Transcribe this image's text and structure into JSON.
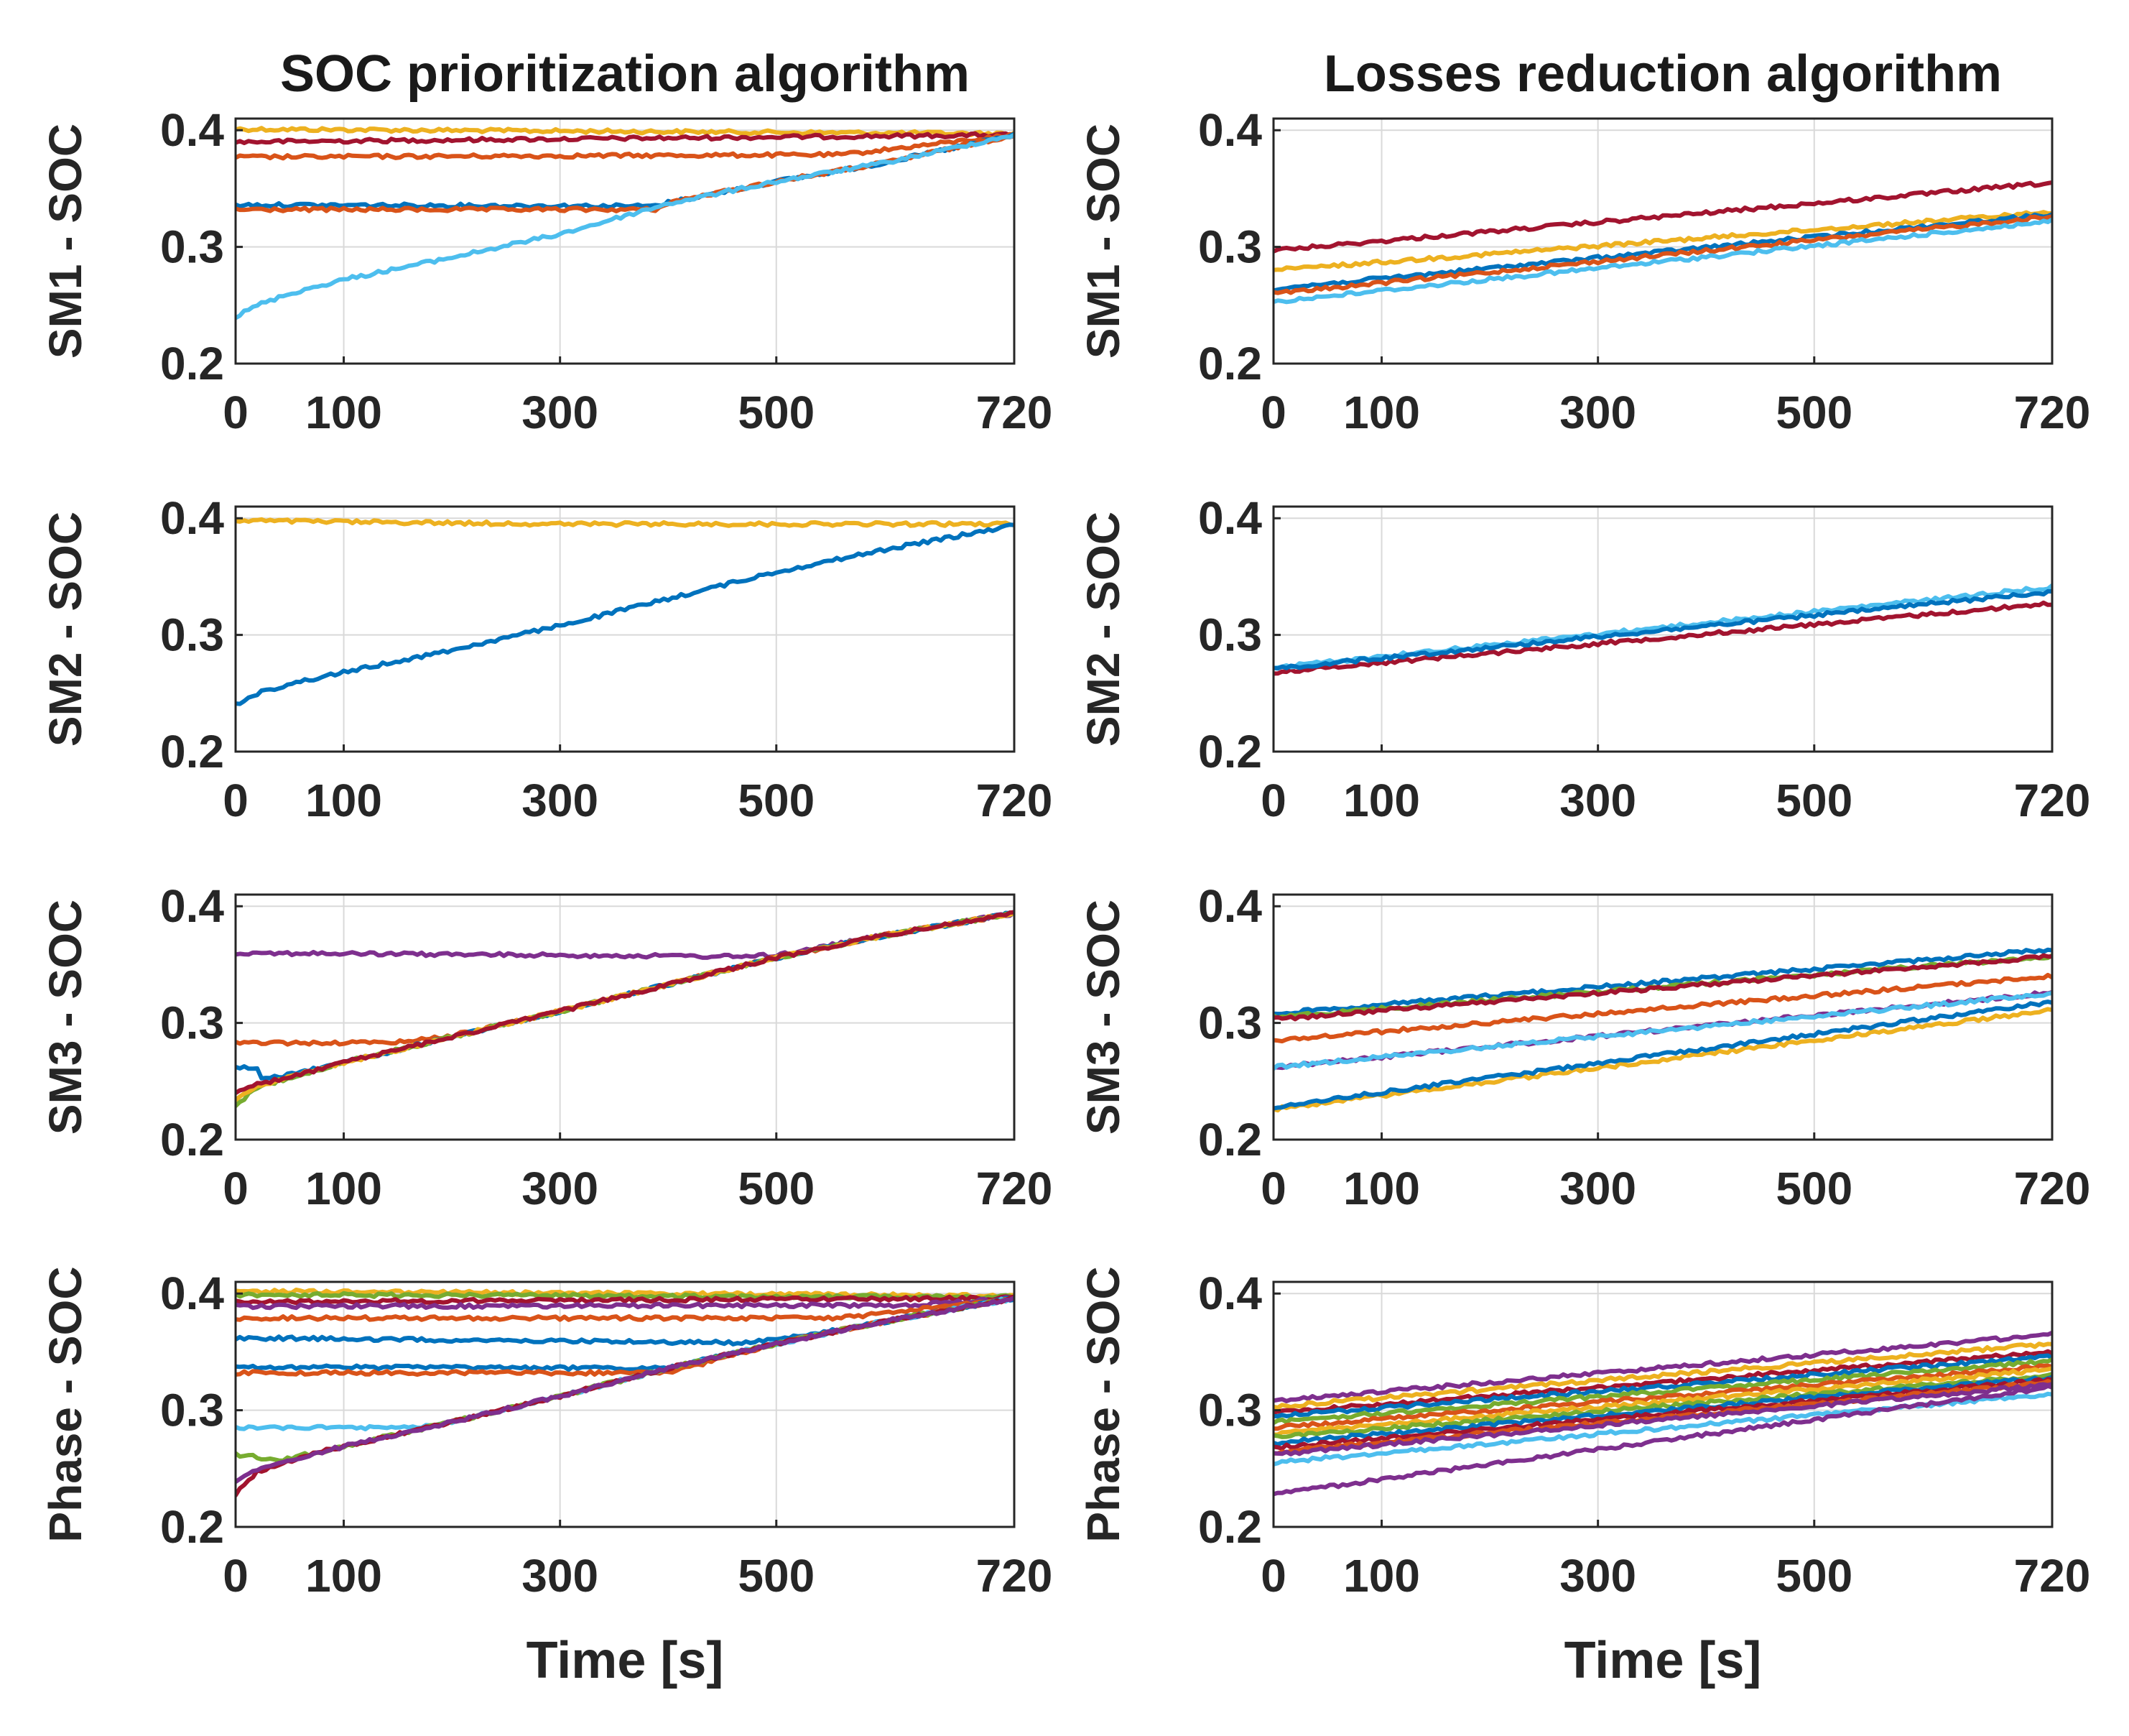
{
  "colors": {
    "blue": "#0072BD",
    "orange": "#D95319",
    "yellow": "#EDB120",
    "purple": "#7E2F8E",
    "green": "#77AC30",
    "cyan": "#4DBEEE",
    "red": "#A2142F",
    "axis": "#262626",
    "grid": "#d9d9d9"
  },
  "chart_data": [
    {
      "type": "line",
      "id": "left-1",
      "column_title": "SOC prioritization algorithm",
      "ylabel": "SM1 - SOC",
      "xlabel": "",
      "xlim": [
        0,
        720
      ],
      "ylim": [
        0.2,
        0.41
      ],
      "xticks": [
        "0",
        "100",
        "300",
        "500",
        "720"
      ],
      "xtick_values": [
        0,
        100,
        300,
        500,
        720
      ],
      "yticks": [
        "0.2",
        "0.3",
        "0.4"
      ],
      "ytick_values": [
        0.2,
        0.3,
        0.4
      ],
      "grid": true,
      "series": [
        {
          "color": "yellow",
          "x": [
            0,
            720
          ],
          "y": [
            0.401,
            0.397
          ]
        },
        {
          "color": "red",
          "x": [
            0,
            720
          ],
          "y": [
            0.39,
            0.396
          ]
        },
        {
          "color": "orange",
          "x": [
            0,
            560,
            720
          ],
          "y": [
            0.377,
            0.379,
            0.396
          ]
        },
        {
          "color": "blue",
          "x": [
            0,
            390,
            400,
            500,
            600,
            720
          ],
          "y": [
            0.336,
            0.335,
            0.338,
            0.356,
            0.372,
            0.396
          ]
        },
        {
          "color": "orange",
          "x": [
            0,
            390,
            400,
            500,
            600,
            720
          ],
          "y": [
            0.332,
            0.332,
            0.338,
            0.356,
            0.372,
            0.396
          ]
        },
        {
          "color": "cyan",
          "x": [
            0,
            20,
            50,
            100,
            200,
            300,
            400,
            500,
            600,
            720
          ],
          "y": [
            0.24,
            0.25,
            0.26,
            0.272,
            0.291,
            0.311,
            0.337,
            0.356,
            0.372,
            0.396
          ]
        }
      ]
    },
    {
      "type": "line",
      "id": "right-1",
      "column_title": "Losses reduction algorithm",
      "ylabel": "SM1 - SOC",
      "xlabel": "",
      "xlim": [
        0,
        720
      ],
      "ylim": [
        0.2,
        0.41
      ],
      "xticks": [
        "0",
        "100",
        "300",
        "500",
        "720"
      ],
      "xtick_values": [
        0,
        100,
        300,
        500,
        720
      ],
      "yticks": [
        "0.2",
        "0.3",
        "0.4"
      ],
      "ytick_values": [
        0.2,
        0.3,
        0.4
      ],
      "grid": true,
      "series": [
        {
          "color": "red",
          "x": [
            0,
            720
          ],
          "y": [
            0.297,
            0.355
          ]
        },
        {
          "color": "yellow",
          "x": [
            0,
            720
          ],
          "y": [
            0.28,
            0.33
          ]
        },
        {
          "color": "blue",
          "x": [
            0,
            720
          ],
          "y": [
            0.264,
            0.328
          ]
        },
        {
          "color": "orange",
          "x": [
            0,
            720
          ],
          "y": [
            0.26,
            0.326
          ]
        },
        {
          "color": "cyan",
          "x": [
            0,
            720
          ],
          "y": [
            0.253,
            0.322
          ]
        }
      ]
    },
    {
      "type": "line",
      "id": "left-2",
      "column_title": "",
      "ylabel": "SM2 - SOC",
      "xlabel": "",
      "xlim": [
        0,
        720
      ],
      "ylim": [
        0.2,
        0.41
      ],
      "xticks": [
        "0",
        "100",
        "300",
        "500",
        "720"
      ],
      "xtick_values": [
        0,
        100,
        300,
        500,
        720
      ],
      "yticks": [
        "0.2",
        "0.3",
        "0.4"
      ],
      "ytick_values": [
        0.2,
        0.3,
        0.4
      ],
      "grid": true,
      "series": [
        {
          "color": "yellow",
          "x": [
            0,
            300,
            720
          ],
          "y": [
            0.398,
            0.395,
            0.395
          ]
        },
        {
          "color": "blue",
          "x": [
            0,
            20,
            50,
            100,
            200,
            300,
            400,
            500,
            600,
            720
          ],
          "y": [
            0.24,
            0.25,
            0.258,
            0.268,
            0.287,
            0.308,
            0.331,
            0.354,
            0.373,
            0.394
          ]
        }
      ]
    },
    {
      "type": "line",
      "id": "right-2",
      "column_title": "",
      "ylabel": "SM2 - SOC",
      "xlabel": "",
      "xlim": [
        0,
        720
      ],
      "ylim": [
        0.2,
        0.41
      ],
      "xticks": [
        "0",
        "100",
        "300",
        "500",
        "720"
      ],
      "xtick_values": [
        0,
        100,
        300,
        500,
        720
      ],
      "yticks": [
        "0.2",
        "0.3",
        "0.4"
      ],
      "ytick_values": [
        0.2,
        0.3,
        0.4
      ],
      "grid": true,
      "series": [
        {
          "color": "red",
          "x": [
            0,
            720
          ],
          "y": [
            0.268,
            0.327
          ]
        },
        {
          "color": "cyan",
          "x": [
            0,
            720
          ],
          "y": [
            0.272,
            0.341
          ]
        },
        {
          "color": "blue",
          "x": [
            0,
            720
          ],
          "y": [
            0.271,
            0.337
          ]
        }
      ]
    },
    {
      "type": "line",
      "id": "left-3",
      "column_title": "",
      "ylabel": "SM3 - SOC",
      "xlabel": "",
      "xlim": [
        0,
        720
      ],
      "ylim": [
        0.2,
        0.41
      ],
      "xticks": [
        "0",
        "100",
        "300",
        "500",
        "720"
      ],
      "xtick_values": [
        0,
        100,
        300,
        500,
        720
      ],
      "yticks": [
        "0.2",
        "0.3",
        "0.4"
      ],
      "ytick_values": [
        0.2,
        0.3,
        0.4
      ],
      "grid": true,
      "series": [
        {
          "color": "purple",
          "x": [
            0,
            460,
            500,
            600,
            720
          ],
          "y": [
            0.36,
            0.357,
            0.358,
            0.375,
            0.394
          ]
        },
        {
          "color": "orange",
          "x": [
            0,
            140,
            200,
            300,
            400,
            500,
            600,
            720
          ],
          "y": [
            0.283,
            0.283,
            0.289,
            0.31,
            0.333,
            0.356,
            0.375,
            0.394
          ]
        },
        {
          "color": "blue",
          "x": [
            0,
            20,
            25,
            100,
            200,
            300,
            400,
            500,
            600,
            720
          ],
          "y": [
            0.262,
            0.262,
            0.251,
            0.266,
            0.288,
            0.31,
            0.333,
            0.356,
            0.375,
            0.394
          ]
        },
        {
          "color": "green",
          "x": [
            0,
            20,
            60,
            100,
            200,
            300,
            400,
            500,
            600,
            720
          ],
          "y": [
            0.228,
            0.245,
            0.256,
            0.266,
            0.288,
            0.31,
            0.333,
            0.356,
            0.375,
            0.394
          ]
        },
        {
          "color": "yellow",
          "x": [
            0,
            20,
            60,
            100,
            200,
            300,
            400,
            500,
            600,
            720
          ],
          "y": [
            0.235,
            0.246,
            0.256,
            0.266,
            0.288,
            0.31,
            0.333,
            0.356,
            0.375,
            0.394
          ]
        },
        {
          "color": "red",
          "x": [
            0,
            20,
            60,
            100,
            200,
            300,
            400,
            500,
            600,
            720
          ],
          "y": [
            0.24,
            0.247,
            0.256,
            0.266,
            0.288,
            0.31,
            0.333,
            0.356,
            0.375,
            0.394
          ]
        }
      ]
    },
    {
      "type": "line",
      "id": "right-3",
      "column_title": "",
      "ylabel": "SM3 - SOC",
      "xlabel": "",
      "xlim": [
        0,
        720
      ],
      "ylim": [
        0.2,
        0.41
      ],
      "xticks": [
        "0",
        "100",
        "300",
        "500",
        "720"
      ],
      "xtick_values": [
        0,
        100,
        300,
        500,
        720
      ],
      "yticks": [
        "0.2",
        "0.3",
        "0.4"
      ],
      "ytick_values": [
        0.2,
        0.3,
        0.4
      ],
      "grid": true,
      "series": [
        {
          "color": "blue",
          "x": [
            0,
            720
          ],
          "y": [
            0.308,
            0.363
          ]
        },
        {
          "color": "green",
          "x": [
            0,
            720
          ],
          "y": [
            0.305,
            0.357
          ]
        },
        {
          "color": "red",
          "x": [
            0,
            720
          ],
          "y": [
            0.303,
            0.357
          ]
        },
        {
          "color": "orange",
          "x": [
            0,
            720
          ],
          "y": [
            0.285,
            0.34
          ]
        },
        {
          "color": "purple",
          "x": [
            0,
            720
          ],
          "y": [
            0.262,
            0.326
          ]
        },
        {
          "color": "cyan",
          "x": [
            0,
            720
          ],
          "y": [
            0.262,
            0.325
          ]
        },
        {
          "color": "yellow",
          "x": [
            0,
            720
          ],
          "y": [
            0.226,
            0.311
          ]
        },
        {
          "color": "blue",
          "x": [
            0,
            720
          ],
          "y": [
            0.228,
            0.318
          ]
        }
      ]
    },
    {
      "type": "line",
      "id": "left-4",
      "column_title": "",
      "ylabel": "Phase - SOC",
      "xlabel": "Time [s]",
      "xlim": [
        0,
        720
      ],
      "ylim": [
        0.2,
        0.41
      ],
      "xticks": [
        "0",
        "100",
        "300",
        "500",
        "720"
      ],
      "xtick_values": [
        0,
        100,
        300,
        500,
        720
      ],
      "yticks": [
        "0.2",
        "0.3",
        "0.4"
      ],
      "ytick_values": [
        0.2,
        0.3,
        0.4
      ],
      "grid": true,
      "series": [
        {
          "color": "yellow",
          "x": [
            0,
            720
          ],
          "y": [
            0.402,
            0.398
          ]
        },
        {
          "color": "green",
          "x": [
            0,
            720
          ],
          "y": [
            0.399,
            0.397
          ]
        },
        {
          "color": "red",
          "x": [
            0,
            720
          ],
          "y": [
            0.393,
            0.396
          ]
        },
        {
          "color": "purple",
          "x": [
            0,
            620,
            720
          ],
          "y": [
            0.389,
            0.39,
            0.396
          ]
        },
        {
          "color": "orange",
          "x": [
            0,
            560,
            720
          ],
          "y": [
            0.379,
            0.379,
            0.396
          ]
        },
        {
          "color": "blue",
          "x": [
            0,
            460,
            500,
            600,
            720
          ],
          "y": [
            0.362,
            0.358,
            0.36,
            0.376,
            0.396
          ]
        },
        {
          "color": "blue",
          "x": [
            0,
            400,
            500,
            600,
            720
          ],
          "y": [
            0.337,
            0.336,
            0.357,
            0.376,
            0.396
          ]
        },
        {
          "color": "orange",
          "x": [
            0,
            400,
            500,
            600,
            720
          ],
          "y": [
            0.332,
            0.332,
            0.357,
            0.376,
            0.396
          ]
        },
        {
          "color": "cyan",
          "x": [
            0,
            160,
            200,
            300,
            400,
            500,
            600,
            720
          ],
          "y": [
            0.285,
            0.285,
            0.29,
            0.312,
            0.336,
            0.357,
            0.376,
            0.396
          ]
        },
        {
          "color": "green",
          "x": [
            0,
            20,
            40,
            100,
            200,
            300,
            400,
            500,
            600,
            720
          ],
          "y": [
            0.262,
            0.26,
            0.257,
            0.269,
            0.29,
            0.312,
            0.336,
            0.357,
            0.376,
            0.396
          ]
        },
        {
          "color": "red",
          "x": [
            0,
            20,
            60,
            100,
            200,
            300,
            400,
            500,
            600,
            720
          ],
          "y": [
            0.228,
            0.247,
            0.26,
            0.269,
            0.29,
            0.312,
            0.336,
            0.357,
            0.376,
            0.396
          ]
        },
        {
          "color": "purple",
          "x": [
            0,
            20,
            60,
            100,
            200,
            300,
            400,
            500,
            600,
            720
          ],
          "y": [
            0.24,
            0.249,
            0.26,
            0.269,
            0.29,
            0.312,
            0.336,
            0.357,
            0.376,
            0.396
          ]
        }
      ]
    },
    {
      "type": "line",
      "id": "right-4",
      "column_title": "",
      "ylabel": "Phase - SOC",
      "xlabel": "Time [s]",
      "xlim": [
        0,
        720
      ],
      "ylim": [
        0.2,
        0.41
      ],
      "xticks": [
        "0",
        "100",
        "300",
        "500",
        "720"
      ],
      "xtick_values": [
        0,
        100,
        300,
        500,
        720
      ],
      "yticks": [
        "0.2",
        "0.3",
        "0.4"
      ],
      "ytick_values": [
        0.2,
        0.3,
        0.4
      ],
      "grid": true,
      "series": [
        {
          "color": "purple",
          "x": [
            0,
            720
          ],
          "y": [
            0.308,
            0.365
          ]
        },
        {
          "color": "yellow",
          "x": [
            0,
            720
          ],
          "y": [
            0.303,
            0.357
          ]
        },
        {
          "color": "red",
          "x": [
            0,
            720
          ],
          "y": [
            0.298,
            0.35
          ]
        },
        {
          "color": "blue",
          "x": [
            0,
            720
          ],
          "y": [
            0.295,
            0.346
          ]
        },
        {
          "color": "green",
          "x": [
            0,
            720
          ],
          "y": [
            0.29,
            0.342
          ]
        },
        {
          "color": "orange",
          "x": [
            0,
            720
          ],
          "y": [
            0.285,
            0.338
          ]
        },
        {
          "color": "yellow",
          "x": [
            0,
            720
          ],
          "y": [
            0.28,
            0.335
          ]
        },
        {
          "color": "green",
          "x": [
            0,
            720
          ],
          "y": [
            0.277,
            0.33
          ]
        },
        {
          "color": "blue",
          "x": [
            0,
            720
          ],
          "y": [
            0.272,
            0.328
          ]
        },
        {
          "color": "red",
          "x": [
            0,
            720
          ],
          "y": [
            0.268,
            0.326
          ]
        },
        {
          "color": "orange",
          "x": [
            0,
            720
          ],
          "y": [
            0.264,
            0.324
          ]
        },
        {
          "color": "purple",
          "x": [
            0,
            720
          ],
          "y": [
            0.262,
            0.322
          ]
        },
        {
          "color": "cyan",
          "x": [
            0,
            720
          ],
          "y": [
            0.255,
            0.314
          ]
        },
        {
          "color": "purple",
          "x": [
            0,
            720
          ],
          "y": [
            0.228,
            0.32
          ]
        }
      ]
    }
  ]
}
